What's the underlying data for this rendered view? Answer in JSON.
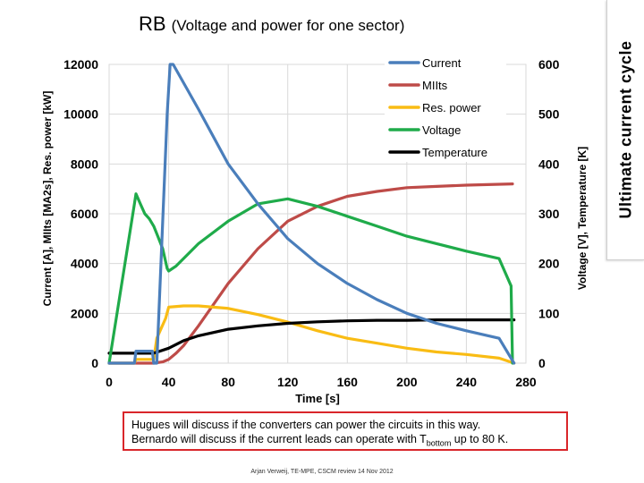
{
  "title": {
    "main": "RB",
    "sub": "(Voltage and power for one sector)"
  },
  "side_banner": "Ultimate current cycle",
  "note": {
    "line1": "Hugues will discuss if the converters can power the circuits in this way.",
    "line2_prefix": "Bernardo will discuss if the current leads can operate with T",
    "line2_sub": "bottom",
    "line2_suffix": " up to 80 K."
  },
  "footer": "Arjan Verweij, TE-MPE, CSCM review 14 Nov 2012",
  "colors": {
    "current": "#4a7ebb",
    "miits": "#be4b48",
    "res_power": "#f9bc14",
    "voltage": "#1fab4a",
    "temperature": "#000000",
    "grid": "#d9d9d9"
  },
  "chart_data": {
    "type": "line",
    "xlabel": "Time [s]",
    "ylabel_left": "Current [A], MIIts [MA2s], Res. power [kW]",
    "ylabel_right": "Voltage [V], Temperature [K]",
    "xlim": [
      0,
      280
    ],
    "ylim_left": [
      0,
      12000
    ],
    "ylim_right": [
      0,
      600
    ],
    "x_ticks": [
      0,
      40,
      80,
      120,
      160,
      200,
      240,
      280
    ],
    "y_ticks_left": [
      0,
      2000,
      4000,
      6000,
      8000,
      10000,
      12000
    ],
    "y_ticks_right": [
      0,
      100,
      200,
      300,
      400,
      500,
      600
    ],
    "grid": true,
    "legend_position": "top-right",
    "series": [
      {
        "name": "Current",
        "axis": "left",
        "color_key": "current",
        "points": [
          [
            0,
            0
          ],
          [
            17,
            0
          ],
          [
            18,
            480
          ],
          [
            29,
            480
          ],
          [
            30,
            0
          ],
          [
            32,
            0
          ],
          [
            39,
            10000
          ],
          [
            41,
            12000
          ],
          [
            43,
            12000
          ],
          [
            60,
            10200
          ],
          [
            80,
            8000
          ],
          [
            100,
            6400
          ],
          [
            120,
            5000
          ],
          [
            140,
            4000
          ],
          [
            160,
            3200
          ],
          [
            180,
            2550
          ],
          [
            200,
            2000
          ],
          [
            220,
            1600
          ],
          [
            240,
            1300
          ],
          [
            262,
            1000
          ],
          [
            272,
            0
          ]
        ]
      },
      {
        "name": "MIIts",
        "axis": "left",
        "color_key": "miits",
        "points": [
          [
            0,
            0
          ],
          [
            30,
            0
          ],
          [
            36,
            50
          ],
          [
            40,
            150
          ],
          [
            45,
            400
          ],
          [
            50,
            700
          ],
          [
            60,
            1500
          ],
          [
            80,
            3200
          ],
          [
            100,
            4600
          ],
          [
            120,
            5700
          ],
          [
            140,
            6300
          ],
          [
            160,
            6700
          ],
          [
            180,
            6900
          ],
          [
            200,
            7050
          ],
          [
            220,
            7100
          ],
          [
            240,
            7150
          ],
          [
            271,
            7200
          ]
        ]
      },
      {
        "name": "Res. power",
        "axis": "left",
        "color_key": "res_power",
        "points": [
          [
            0,
            0
          ],
          [
            17,
            0
          ],
          [
            18,
            150
          ],
          [
            30,
            150
          ],
          [
            32,
            1000
          ],
          [
            38,
            1800
          ],
          [
            40,
            2250
          ],
          [
            50,
            2300
          ],
          [
            60,
            2300
          ],
          [
            80,
            2200
          ],
          [
            100,
            1950
          ],
          [
            120,
            1650
          ],
          [
            140,
            1300
          ],
          [
            160,
            1000
          ],
          [
            180,
            800
          ],
          [
            200,
            600
          ],
          [
            220,
            450
          ],
          [
            240,
            350
          ],
          [
            262,
            200
          ],
          [
            272,
            0
          ]
        ]
      },
      {
        "name": "Voltage",
        "axis": "right",
        "color_key": "voltage",
        "points": [
          [
            0,
            0
          ],
          [
            17,
            320
          ],
          [
            18,
            340
          ],
          [
            21,
            320
          ],
          [
            24,
            300
          ],
          [
            27,
            290
          ],
          [
            30,
            275
          ],
          [
            32,
            260
          ],
          [
            36,
            230
          ],
          [
            39,
            190
          ],
          [
            40,
            185
          ],
          [
            45,
            195
          ],
          [
            60,
            240
          ],
          [
            80,
            285
          ],
          [
            100,
            320
          ],
          [
            120,
            330
          ],
          [
            140,
            315
          ],
          [
            160,
            295
          ],
          [
            180,
            275
          ],
          [
            200,
            255
          ],
          [
            220,
            240
          ],
          [
            240,
            225
          ],
          [
            262,
            210
          ],
          [
            270,
            155
          ],
          [
            271,
            0
          ]
        ]
      },
      {
        "name": "Temperature",
        "axis": "right",
        "color_key": "temperature",
        "points": [
          [
            0,
            20
          ],
          [
            30,
            20
          ],
          [
            40,
            30
          ],
          [
            50,
            45
          ],
          [
            60,
            55
          ],
          [
            80,
            68
          ],
          [
            100,
            75
          ],
          [
            120,
            80
          ],
          [
            140,
            83
          ],
          [
            160,
            85
          ],
          [
            180,
            86
          ],
          [
            200,
            86
          ],
          [
            220,
            87
          ],
          [
            240,
            87
          ],
          [
            272,
            87
          ]
        ]
      }
    ]
  }
}
